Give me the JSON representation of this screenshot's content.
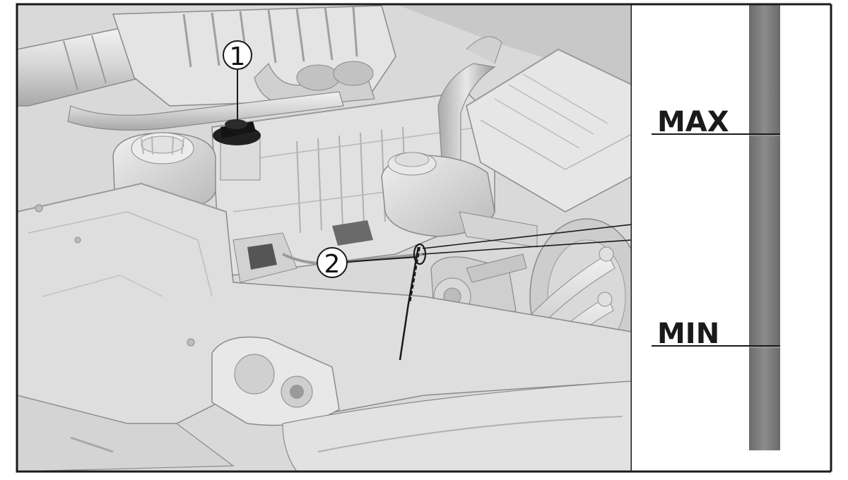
{
  "figure": {
    "callouts": [
      {
        "number": "1"
      },
      {
        "number": "2"
      }
    ],
    "dipstick_scale": {
      "max_label": "MAX",
      "min_label": "MIN"
    },
    "colors": {
      "frame": "#1a1a1a",
      "engine_light": "#e6e6e6",
      "engine_mid": "#cfcfcf",
      "engine_dark": "#9e9e9e",
      "oil_cap": "#141414",
      "dipstick_blade": "#7a7a7a",
      "panel_bg": "#ffffff"
    }
  }
}
